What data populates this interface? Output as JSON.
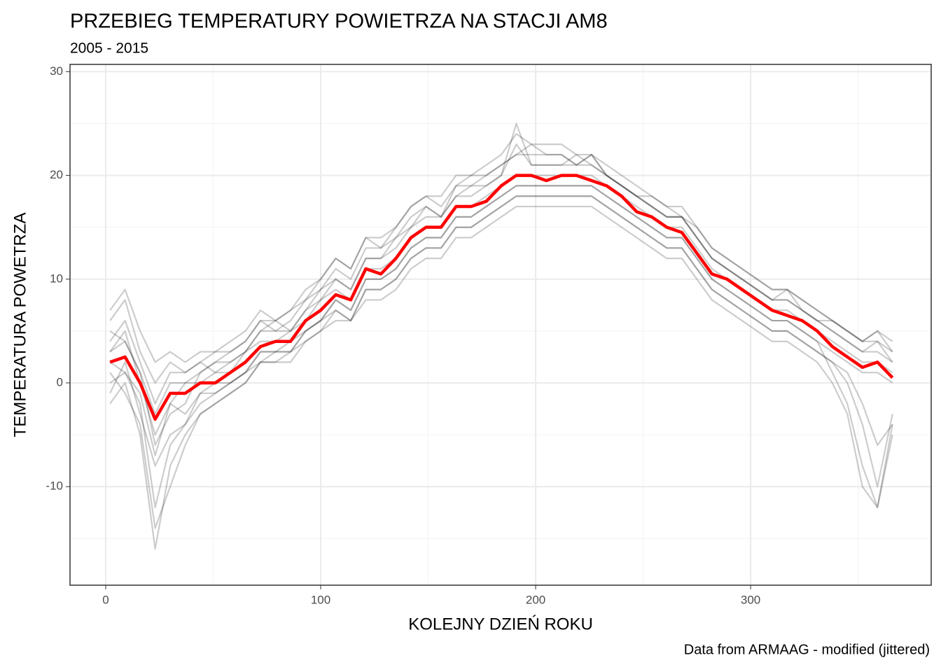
{
  "chart_data": {
    "type": "line",
    "title": "PRZEBIEG TEMPERATURY POWIETRZA NA STACJI AM8",
    "subtitle": "2005 - 2015",
    "xlabel": "KOLEJNY DZIEŃ ROKU",
    "ylabel": "TEMPERATURA POWETRZA",
    "caption": "Data from ARMAAG - modified (jittered)",
    "x": [
      2,
      9,
      16,
      23,
      30,
      37,
      44,
      51,
      58,
      65,
      72,
      79,
      86,
      93,
      100,
      107,
      114,
      121,
      128,
      135,
      142,
      149,
      156,
      163,
      170,
      177,
      184,
      191,
      198,
      205,
      212,
      219,
      226,
      233,
      240,
      247,
      254,
      261,
      268,
      275,
      282,
      289,
      296,
      303,
      310,
      317,
      324,
      331,
      338,
      345,
      352,
      359,
      366
    ],
    "series": [
      {
        "color": "#000000",
        "opacity": 0.2,
        "values": [
          5,
          4,
          1,
          -6,
          -3,
          -2,
          1,
          2,
          3,
          4,
          6,
          5,
          6,
          8,
          9,
          11,
          10,
          13,
          13,
          14,
          16,
          17,
          16,
          19,
          19,
          20,
          21,
          22,
          23,
          22,
          22,
          21,
          22,
          20,
          19,
          18,
          17,
          16,
          16,
          14,
          12,
          11,
          10,
          9,
          8,
          8,
          7,
          6,
          5,
          4,
          3,
          4,
          2
        ]
      },
      {
        "color": "#000000",
        "opacity": 0.2,
        "values": [
          -1,
          2,
          -3,
          -8,
          -5,
          -4,
          -2,
          -1,
          0,
          1,
          2,
          3,
          3,
          5,
          6,
          7,
          6,
          9,
          9,
          10,
          12,
          13,
          13,
          15,
          15,
          16,
          17,
          18,
          18,
          18,
          18,
          18,
          18,
          17,
          16,
          15,
          14,
          13,
          13,
          11,
          9,
          8,
          7,
          6,
          5,
          5,
          4,
          3,
          2,
          1,
          -2,
          -6,
          -4
        ]
      },
      {
        "color": "#000000",
        "opacity": 0.2,
        "values": [
          4,
          6,
          2,
          -2,
          1,
          1,
          2,
          1,
          2,
          3,
          5,
          6,
          5,
          7,
          9,
          10,
          9,
          12,
          12,
          14,
          15,
          17,
          16,
          18,
          19,
          19,
          20,
          23,
          21,
          21,
          21,
          22,
          21,
          20,
          19,
          18,
          17,
          16,
          16,
          14,
          12,
          11,
          10,
          9,
          8,
          9,
          7,
          6,
          6,
          5,
          4,
          5,
          3
        ]
      },
      {
        "color": "#000000",
        "opacity": 0.2,
        "values": [
          0,
          1,
          -2,
          -12,
          -6,
          -4,
          -1,
          -1,
          0,
          1,
          3,
          3,
          4,
          5,
          6,
          8,
          7,
          10,
          10,
          11,
          13,
          14,
          14,
          16,
          16,
          17,
          18,
          19,
          19,
          19,
          19,
          19,
          19,
          18,
          17,
          16,
          15,
          14,
          14,
          12,
          10,
          9,
          8,
          7,
          6,
          6,
          5,
          4,
          1,
          -2,
          -8,
          -12,
          -5
        ]
      },
      {
        "color": "#000000",
        "opacity": 0.2,
        "values": [
          6,
          8,
          3,
          0,
          2,
          1,
          2,
          3,
          3,
          4,
          6,
          6,
          7,
          8,
          10,
          12,
          11,
          14,
          13,
          15,
          17,
          18,
          18,
          20,
          20,
          21,
          22,
          24,
          23,
          23,
          23,
          22,
          22,
          21,
          20,
          19,
          18,
          17,
          17,
          15,
          13,
          12,
          11,
          10,
          9,
          9,
          8,
          7,
          6,
          5,
          4,
          4,
          3
        ]
      },
      {
        "color": "#000000",
        "opacity": 0.2,
        "values": [
          1,
          -1,
          -4,
          -14,
          -10,
          -6,
          -3,
          -2,
          -1,
          0,
          2,
          2,
          2,
          4,
          5,
          7,
          6,
          9,
          9,
          10,
          12,
          13,
          13,
          15,
          15,
          16,
          17,
          18,
          18,
          18,
          18,
          18,
          18,
          17,
          16,
          15,
          14,
          13,
          13,
          11,
          9,
          8,
          7,
          6,
          5,
          5,
          4,
          3,
          2,
          0,
          -4,
          -10,
          -3
        ]
      },
      {
        "color": "#000000",
        "opacity": 0.2,
        "values": [
          3,
          4,
          1,
          -3,
          0,
          0,
          1,
          2,
          2,
          3,
          5,
          5,
          5,
          7,
          8,
          10,
          9,
          12,
          12,
          13,
          15,
          16,
          16,
          18,
          18,
          19,
          20,
          25,
          21,
          21,
          21,
          21,
          21,
          20,
          19,
          18,
          17,
          16,
          16,
          14,
          12,
          11,
          10,
          9,
          8,
          8,
          7,
          6,
          5,
          4,
          3,
          3,
          2
        ]
      },
      {
        "color": "#000000",
        "opacity": 0.2,
        "values": [
          2,
          1,
          -1,
          -7,
          -2,
          -3,
          -1,
          0,
          0,
          1,
          3,
          3,
          3,
          5,
          6,
          8,
          7,
          10,
          10,
          11,
          13,
          14,
          14,
          16,
          16,
          17,
          18,
          19,
          19,
          19,
          19,
          19,
          19,
          18,
          17,
          16,
          15,
          14,
          14,
          12,
          10,
          9,
          8,
          7,
          6,
          6,
          5,
          4,
          3,
          2,
          1,
          1,
          0
        ]
      },
      {
        "color": "#000000",
        "opacity": 0.2,
        "values": [
          7,
          9,
          5,
          2,
          3,
          2,
          3,
          3,
          4,
          5,
          7,
          6,
          7,
          9,
          10,
          12,
          11,
          14,
          14,
          15,
          17,
          18,
          17,
          19,
          20,
          20,
          21,
          22,
          22,
          22,
          22,
          21,
          22,
          20,
          19,
          18,
          18,
          17,
          16,
          15,
          13,
          12,
          11,
          10,
          9,
          9,
          8,
          7,
          6,
          5,
          4,
          5,
          4
        ]
      },
      {
        "color": "#000000",
        "opacity": 0.2,
        "values": [
          -2,
          0,
          -5,
          -16,
          -8,
          -5,
          -3,
          -2,
          -1,
          0,
          2,
          2,
          3,
          4,
          5,
          6,
          6,
          8,
          8,
          9,
          11,
          12,
          12,
          14,
          14,
          15,
          16,
          17,
          17,
          17,
          17,
          17,
          17,
          16,
          15,
          14,
          13,
          12,
          12,
          10,
          8,
          7,
          6,
          5,
          4,
          4,
          3,
          2,
          0,
          -3,
          -10,
          -12,
          -4
        ]
      },
      {
        "color": "#000000",
        "opacity": 0.2,
        "values": [
          3,
          5,
          0,
          -5,
          -2,
          0,
          0,
          1,
          1,
          3,
          4,
          4,
          5,
          6,
          8,
          9,
          8,
          11,
          11,
          12,
          14,
          15,
          15,
          17,
          17,
          18,
          19,
          20,
          20,
          20,
          20,
          20,
          20,
          19,
          18,
          17,
          16,
          15,
          15,
          13,
          11,
          10,
          9,
          8,
          7,
          7,
          6,
          5,
          4,
          3,
          2,
          2,
          1
        ]
      },
      {
        "color": "#ff0000",
        "opacity": 1,
        "values": [
          2,
          2.5,
          0,
          -3.5,
          -1,
          -1,
          0,
          0,
          1,
          2,
          3.5,
          4,
          4,
          6,
          7,
          8.5,
          8,
          11,
          10.5,
          12,
          14,
          15,
          15,
          17,
          17,
          17.5,
          19,
          20,
          20,
          19.5,
          20,
          20,
          19.5,
          19,
          18,
          16.5,
          16,
          15,
          14.5,
          12.5,
          10.5,
          10,
          9,
          8,
          7,
          6.5,
          6,
          5,
          3.5,
          2.5,
          1.5,
          2,
          0.5
        ]
      }
    ],
    "xlim": [
      -16.6,
      384
    ],
    "ylim": [
      -19.5,
      30.7
    ],
    "xticks": [
      0,
      100,
      200,
      300
    ],
    "yticks": [
      -10,
      0,
      10,
      20,
      30
    ],
    "x_minor_grid": [
      50,
      150,
      250,
      350
    ],
    "y_minor_grid": [
      -15,
      -5,
      5,
      15,
      25
    ],
    "grid": true
  }
}
